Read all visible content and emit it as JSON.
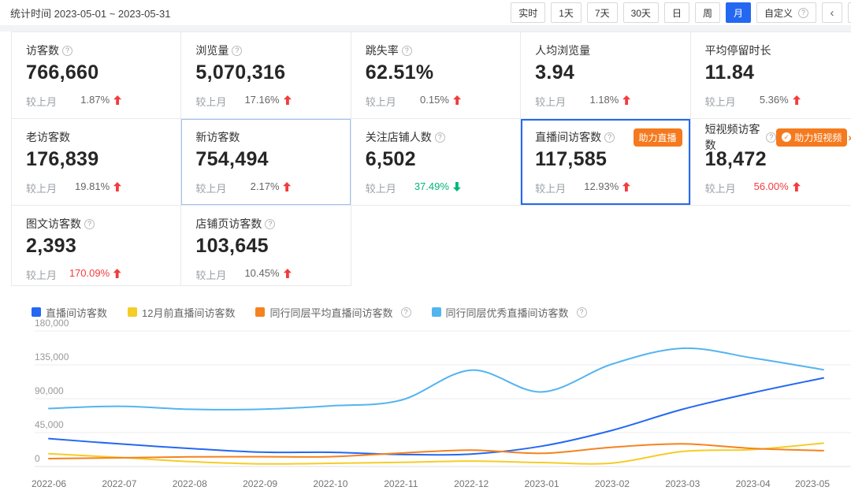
{
  "colors": {
    "accent": "#2468F2",
    "rise": "#F23C3C",
    "fall": "#00B578",
    "badge": "#F57A1E"
  },
  "icons": {
    "help_glyph": "?",
    "check_glyph": "✓",
    "chevron_left": "‹",
    "chevron_right": "›"
  },
  "topbar": {
    "date_label": "统计时间 2023-05-01 ~ 2023-05-31",
    "filters": [
      "实时",
      "1天",
      "7天",
      "30天",
      "日",
      "周",
      "月"
    ],
    "active_filter": "月",
    "custom_label": "自定义"
  },
  "metrics": {
    "compare_label": "较上月",
    "rows": [
      [
        {
          "label": "访客数",
          "help": true,
          "value": "766,660",
          "delta": "1.87%",
          "dir": "up",
          "tone": "normal"
        },
        {
          "label": "浏览量",
          "help": true,
          "value": "5,070,316",
          "delta": "17.16%",
          "dir": "up",
          "tone": "normal"
        },
        {
          "label": "跳失率",
          "help": true,
          "value": "62.51%",
          "delta": "0.15%",
          "dir": "up",
          "tone": "normal"
        },
        {
          "label": "人均浏览量",
          "help": false,
          "value": "3.94",
          "delta": "1.18%",
          "dir": "up",
          "tone": "normal"
        },
        {
          "label": "平均停留时长",
          "help": false,
          "value": "11.84",
          "delta": "5.36%",
          "dir": "up",
          "tone": "normal"
        }
      ],
      [
        {
          "label": "老访客数",
          "help": false,
          "value": "176,839",
          "delta": "19.81%",
          "dir": "up",
          "tone": "normal"
        },
        {
          "label": "新访客数",
          "help": false,
          "value": "754,494",
          "delta": "2.17%",
          "dir": "up",
          "tone": "normal",
          "highlighted": true
        },
        {
          "label": "关注店铺人数",
          "help": true,
          "value": "6,502",
          "delta": "37.49%",
          "dir": "down",
          "tone": "good"
        },
        {
          "label": "直播间访客数",
          "help": true,
          "value": "117,585",
          "delta": "12.93%",
          "dir": "up",
          "tone": "normal",
          "selected": true,
          "badge": "助力直播"
        },
        {
          "label": "短视频访客数",
          "help": true,
          "value": "18,472",
          "delta": "56.00%",
          "dir": "up",
          "tone": "hot",
          "badge": "助力短视频",
          "badge_icon": "shield-check",
          "badge_arrow": true
        }
      ],
      [
        {
          "label": "图文访客数",
          "help": true,
          "value": "2,393",
          "delta": "170.09%",
          "dir": "up",
          "tone": "hot"
        },
        {
          "label": "店铺页访客数",
          "help": true,
          "value": "103,645",
          "delta": "10.45%",
          "dir": "up",
          "tone": "normal"
        }
      ]
    ]
  },
  "chart_data": {
    "type": "line",
    "x": [
      "2022-06",
      "2022-07",
      "2022-08",
      "2022-09",
      "2022-10",
      "2022-11",
      "2022-12",
      "2023-01",
      "2023-02",
      "2023-03",
      "2023-04",
      "2023-05"
    ],
    "series": [
      {
        "name": "直播间访客数",
        "color": "#2468F2",
        "help": false,
        "values": [
          37000,
          30000,
          24000,
          19000,
          18800,
          16000,
          16500,
          27000,
          48000,
          76000,
          98000,
          117585
        ]
      },
      {
        "name": "12月前直播间访客数",
        "color": "#F4CD27",
        "help": false,
        "values": [
          17000,
          12000,
          6500,
          3500,
          4200,
          5500,
          7200,
          5200,
          4500,
          20000,
          22500,
          31000
        ]
      },
      {
        "name": "同行同层平均直播间访客数",
        "color": "#F5821F",
        "help": true,
        "values": [
          10500,
          11500,
          12800,
          13000,
          13000,
          17800,
          21800,
          17500,
          25500,
          30000,
          24000,
          21000
        ]
      },
      {
        "name": "同行同层优秀直播间访客数",
        "color": "#54B4F0",
        "help": true,
        "values": [
          77000,
          80000,
          76000,
          76000,
          80500,
          88000,
          128000,
          99000,
          136000,
          157000,
          144000,
          128500
        ]
      }
    ],
    "yticks": [
      0,
      45000,
      90000,
      135000,
      180000
    ],
    "ytick_labels": [
      "0",
      "45,000",
      "90,000",
      "135,000",
      "180,000"
    ],
    "ylim": [
      0,
      180000
    ],
    "grid": true,
    "legend_position": "top",
    "title": ""
  }
}
